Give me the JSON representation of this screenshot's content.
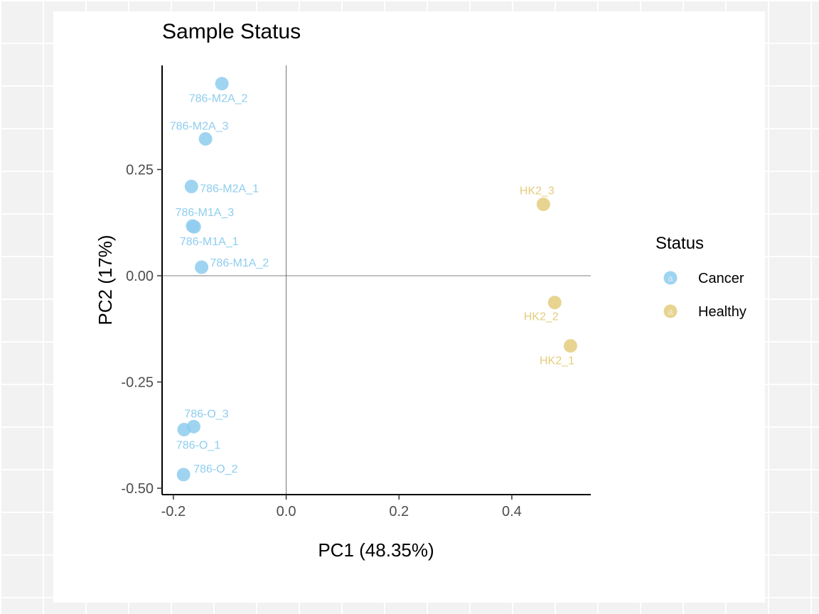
{
  "chart_data": {
    "type": "scatter",
    "title": "Sample Status",
    "xlabel": "PC1 (48.35%)",
    "ylabel": "PC2 (17%)",
    "xlim": [
      -0.22,
      0.54
    ],
    "ylim": [
      -0.515,
      0.495
    ],
    "xticks": [
      -0.2,
      0.0,
      0.2,
      0.4
    ],
    "xtick_labels": [
      "-0.2",
      "0.0",
      "0.2",
      "0.4"
    ],
    "yticks": [
      -0.5,
      -0.25,
      0.0,
      0.25
    ],
    "ytick_labels": [
      "-0.50",
      "-0.25",
      "0.00",
      "0.25"
    ],
    "reference_lines": {
      "x": 0,
      "y": 0
    },
    "grid": false,
    "legend": {
      "title": "Status",
      "position": "right",
      "entries": [
        {
          "label": "Cancer",
          "color": "#8ecdef"
        },
        {
          "label": "Healthy",
          "color": "#e3cd7d"
        }
      ]
    },
    "series": [
      {
        "name": "Cancer",
        "color": "#8ecdef",
        "points": [
          {
            "label": "786-M2A_2",
            "x": -0.114,
            "y": 0.452
          },
          {
            "label": "786-M2A_3",
            "x": -0.143,
            "y": 0.322
          },
          {
            "label": "786-M2A_1",
            "x": -0.168,
            "y": 0.21
          },
          {
            "label": "786-M1A_3",
            "x": -0.166,
            "y": 0.117
          },
          {
            "label": "786-M1A_1",
            "x": -0.163,
            "y": 0.115
          },
          {
            "label": "786-M1A_2",
            "x": -0.15,
            "y": 0.02
          },
          {
            "label": "786-O_3",
            "x": -0.164,
            "y": -0.355
          },
          {
            "label": "786-O_1",
            "x": -0.181,
            "y": -0.362
          },
          {
            "label": "786-O_2",
            "x": -0.182,
            "y": -0.468
          }
        ]
      },
      {
        "name": "Healthy",
        "color": "#e3cd7d",
        "points": [
          {
            "label": "HK2_3",
            "x": 0.456,
            "y": 0.168
          },
          {
            "label": "HK2_2",
            "x": 0.476,
            "y": -0.063
          },
          {
            "label": "HK2_1",
            "x": 0.504,
            "y": -0.165
          }
        ]
      }
    ]
  }
}
